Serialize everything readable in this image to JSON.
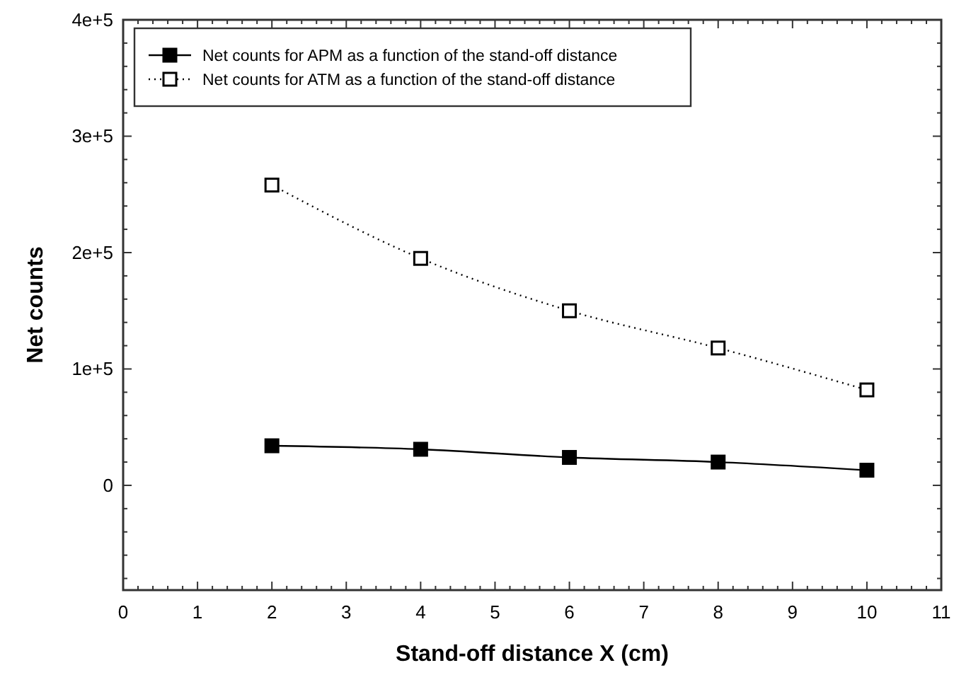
{
  "chart_data": {
    "type": "line",
    "xlabel": "Stand-off distance X (cm)",
    "ylabel": "Net counts",
    "x": [
      2,
      4,
      6,
      8,
      10
    ],
    "series": [
      {
        "name": "Net counts for APM as a function of the stand-off distance",
        "color": "#000000",
        "line_style": "solid",
        "values": [
          34000,
          31000,
          24000,
          20000,
          13000
        ]
      },
      {
        "name": "Net counts for ATM as a function of the stand-off distance",
        "color": "#000000",
        "line_style": "dotted",
        "values": [
          258000,
          195000,
          150000,
          118000,
          82000
        ]
      }
    ],
    "marker": "square",
    "legend": "top left",
    "grid": false,
    "xlim": [
      0,
      11
    ],
    "ylim": [
      -90000,
      400000
    ],
    "xticks": [
      0,
      1,
      2,
      3,
      4,
      5,
      6,
      7,
      8,
      9,
      10,
      11,
      {
        "value": 0.2,
        "label": null
      },
      {
        "value": 0.4,
        "label": null
      },
      {
        "value": 0.6,
        "label": null
      },
      {
        "value": 0.8,
        "label": null
      },
      {
        "value": 1.2,
        "label": null
      },
      {
        "value": 1.4,
        "label": null
      },
      {
        "value": 1.6,
        "label": null
      },
      {
        "value": 1.8,
        "label": null
      },
      {
        "value": 2.2,
        "label": null
      },
      {
        "value": 2.4,
        "label": null
      },
      {
        "value": 2.6,
        "label": null
      },
      {
        "value": 2.8,
        "label": null
      },
      {
        "value": 3.2,
        "label": null
      },
      {
        "value": 3.4,
        "label": null
      },
      {
        "value": 3.6,
        "label": null
      },
      {
        "value": 3.8,
        "label": null
      },
      {
        "value": 4.2,
        "label": null
      },
      {
        "value": 4.4,
        "label": null
      },
      {
        "value": 4.6,
        "label": null
      },
      {
        "value": 4.8,
        "label": null
      },
      {
        "value": 5.2,
        "label": null
      },
      {
        "value": 5.4,
        "label": null
      },
      {
        "value": 5.6,
        "label": null
      },
      {
        "value": 5.8,
        "label": null
      },
      {
        "value": 6.2,
        "label": null
      },
      {
        "value": 6.4,
        "label": null
      },
      {
        "value": 6.6,
        "label": null
      },
      {
        "value": 6.8,
        "label": null
      },
      {
        "value": 7.2,
        "label": null
      },
      {
        "value": 7.4,
        "label": null
      },
      {
        "value": 7.6,
        "label": null
      },
      {
        "value": 7.8,
        "label": null
      },
      {
        "value": 8.2,
        "label": null
      },
      {
        "value": 8.4,
        "label": null
      },
      {
        "value": 8.6,
        "label": null
      },
      {
        "value": 8.8,
        "label": null
      },
      {
        "value": 9.2,
        "label": null
      },
      {
        "value": 9.4,
        "label": null
      },
      {
        "value": 9.6,
        "label": null
      },
      {
        "value": 9.8,
        "label": null
      },
      {
        "value": 10.2,
        "label": null
      },
      {
        "value": 10.4,
        "label": null
      },
      {
        "value": 10.6,
        "label": null
      },
      {
        "value": 10.8,
        "label": null
      }
    ],
    "yticks": [
      0,
      {
        "value": 100000,
        "label": "1e+5"
      },
      {
        "value": 200000,
        "label": "2e+5"
      },
      {
        "value": 300000,
        "label": "3e+5"
      },
      {
        "value": 400000,
        "label": "4e+5"
      },
      {
        "value": -80000,
        "label": null
      },
      {
        "value": -60000,
        "label": null
      },
      {
        "value": -40000,
        "label": null
      },
      {
        "value": -20000,
        "label": null
      },
      {
        "value": 20000,
        "label": null
      },
      {
        "value": 40000,
        "label": null
      },
      {
        "value": 60000,
        "label": null
      },
      {
        "value": 80000,
        "label": null
      },
      {
        "value": 120000,
        "label": null
      },
      {
        "value": 140000,
        "label": null
      },
      {
        "value": 160000,
        "label": null
      },
      {
        "value": 180000,
        "label": null
      },
      {
        "value": 220000,
        "label": null
      },
      {
        "value": 240000,
        "label": null
      },
      {
        "value": 260000,
        "label": null
      },
      {
        "value": 280000,
        "label": null
      },
      {
        "value": 320000,
        "label": null
      },
      {
        "value": 340000,
        "label": null
      },
      {
        "value": 360000,
        "label": null
      },
      {
        "value": 380000,
        "label": null
      }
    ]
  }
}
